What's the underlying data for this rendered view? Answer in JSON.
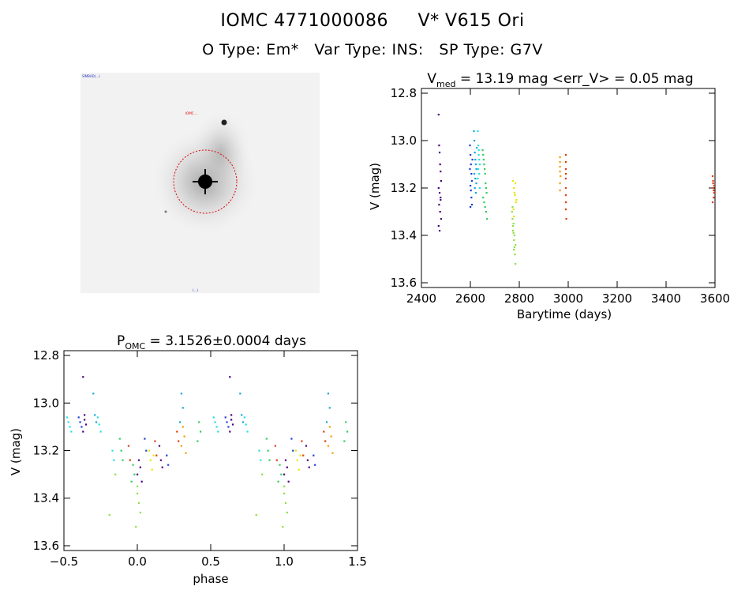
{
  "header": {
    "object_id": "IOMC 4771000086",
    "star_name": "V* V615 Ori",
    "o_type_label": "O Type:",
    "o_type": "Em*",
    "var_type_label": "Var Type:",
    "var_type": "INS:",
    "sp_type_label": "SP Type:",
    "sp_type": "G7V"
  },
  "image_panel": {
    "top_left_text": "SIMBAD(...)",
    "label_text": "IOMC ...",
    "bottom_text": "(...)",
    "colors": {
      "circle": "#e00000",
      "background": "#f2f2f2",
      "star": "#000000"
    }
  },
  "chart_data": [
    {
      "type": "scatter",
      "title": "V_med = 13.19 mag <err_V> = 0.05 mag",
      "title_parts": {
        "v": "V",
        "sub": "med",
        "rest": " = 13.19 mag <err_V> = 0.05 mag"
      },
      "xlabel": "Barytime (days)",
      "ylabel": "V (mag)",
      "xlim": [
        2400,
        3600
      ],
      "ylim": [
        13.62,
        12.78
      ],
      "xticks": [
        2400,
        2600,
        2800,
        3000,
        3200,
        3400,
        3600
      ],
      "yticks": [
        12.8,
        13.0,
        13.2,
        13.4,
        13.6
      ],
      "ytick_labels": [
        "12.8",
        "13.0",
        "13.2",
        "13.4",
        "13.6"
      ],
      "series": [
        {
          "color": "#4b0082",
          "x": [
            2470,
            2472,
            2474,
            2476,
            2478,
            2480,
            2470,
            2474,
            2478,
            2472,
            2476,
            2480,
            2470,
            2478,
            2474
          ],
          "y": [
            12.89,
            13.02,
            13.05,
            13.1,
            13.13,
            13.17,
            13.2,
            13.22,
            13.25,
            13.27,
            13.3,
            13.33,
            13.36,
            13.24,
            13.38
          ]
        },
        {
          "color": "#1c3fd8",
          "x": [
            2598,
            2600,
            2602,
            2604,
            2606,
            2600,
            2602,
            2604,
            2598,
            2606,
            2608,
            2600
          ],
          "y": [
            13.02,
            13.06,
            13.1,
            13.14,
            13.17,
            13.19,
            13.21,
            13.24,
            13.12,
            13.27,
            13.08,
            13.28
          ]
        },
        {
          "color": "#12a8d8",
          "x": [
            2614,
            2616,
            2618,
            2620,
            2622,
            2624,
            2616,
            2620,
            2624,
            2618,
            2622,
            2626
          ],
          "y": [
            12.96,
            13.0,
            13.05,
            13.08,
            13.1,
            13.12,
            13.14,
            13.16,
            13.18,
            13.2,
            13.22,
            13.03
          ]
        },
        {
          "color": "#22e0e0",
          "x": [
            2630,
            2632,
            2634,
            2636,
            2638,
            2632,
            2636,
            2630,
            2634,
            2638
          ],
          "y": [
            12.96,
            13.02,
            13.06,
            13.08,
            13.1,
            13.12,
            13.14,
            13.16,
            13.04,
            13.2
          ]
        },
        {
          "color": "#2fcf5a",
          "x": [
            2650,
            2652,
            2654,
            2656,
            2658,
            2660,
            2662,
            2664,
            2666,
            2652,
            2656,
            2660,
            2664,
            2668
          ],
          "y": [
            13.04,
            13.06,
            13.08,
            13.1,
            13.12,
            13.14,
            13.18,
            13.2,
            13.22,
            13.24,
            13.26,
            13.28,
            13.3,
            13.33
          ]
        },
        {
          "color": "#8ee040",
          "x": [
            2770,
            2772,
            2774,
            2776,
            2778,
            2780,
            2782,
            2784,
            2772,
            2776,
            2780,
            2784,
            2774,
            2778
          ],
          "y": [
            13.3,
            13.33,
            13.36,
            13.39,
            13.42,
            13.45,
            13.48,
            13.52,
            13.28,
            13.35,
            13.4,
            13.44,
            13.38,
            13.46
          ]
        },
        {
          "color": "#e6e600",
          "x": [
            2774,
            2778,
            2782,
            2786,
            2776,
            2780,
            2784,
            2788,
            2778
          ],
          "y": [
            13.17,
            13.2,
            13.23,
            13.26,
            13.29,
            13.22,
            13.18,
            13.25,
            13.32
          ]
        },
        {
          "color": "#f0a000",
          "x": [
            2966,
            2966,
            2966,
            2966,
            2968,
            2966,
            2966
          ],
          "y": [
            13.07,
            13.09,
            13.11,
            13.13,
            13.15,
            13.18,
            13.21
          ]
        },
        {
          "color": "#e23a10",
          "x": [
            2990,
            2990,
            2990,
            2990,
            2990,
            2990,
            2990,
            2990,
            2992,
            2990,
            3590,
            3592,
            3594,
            3596,
            3594,
            3592,
            3596,
            3590,
            3594
          ],
          "y": [
            13.06,
            13.09,
            13.12,
            13.16,
            13.2,
            13.23,
            13.26,
            13.29,
            13.33,
            13.14,
            13.15,
            13.18,
            13.2,
            13.22,
            13.24,
            13.17,
            13.19,
            13.26,
            13.21
          ]
        }
      ]
    },
    {
      "type": "scatter",
      "title": "P_OMC = 3.1526±0.0004 days",
      "title_parts": {
        "p": "P",
        "sub": "OMC",
        "rest": " = 3.1526±0.0004 days"
      },
      "xlabel": "phase",
      "ylabel": "V (mag)",
      "xlim": [
        -0.5,
        1.5
      ],
      "ylim": [
        13.62,
        12.78
      ],
      "xticks": [
        -0.5,
        0.0,
        0.5,
        1.0,
        1.5
      ],
      "xtick_labels": [
        "−0.5",
        "0.0",
        "0.5",
        "1.0",
        "1.5"
      ],
      "yticks": [
        12.8,
        13.0,
        13.2,
        13.4,
        13.6
      ],
      "ytick_labels": [
        "12.8",
        "13.0",
        "13.2",
        "13.4",
        "13.6"
      ],
      "series": [
        {
          "color": "#4b0082",
          "x": [
            -0.37,
            -0.36,
            -0.35,
            -0.37,
            -0.36,
            0.01,
            0.02,
            0.0,
            0.03,
            0.15,
            0.16,
            0.17,
            0.63,
            0.64,
            0.65,
            0.63,
            0.64,
            1.01,
            1.02,
            1.0,
            1.03,
            1.15,
            1.16,
            1.17
          ],
          "y": [
            12.89,
            13.05,
            13.09,
            13.12,
            13.07,
            13.24,
            13.27,
            13.3,
            13.33,
            13.18,
            13.24,
            13.27,
            12.89,
            13.05,
            13.09,
            13.12,
            13.07,
            13.24,
            13.27,
            13.3,
            13.33,
            13.18,
            13.24,
            13.27
          ]
        },
        {
          "color": "#1c3fd8",
          "x": [
            -0.4,
            -0.39,
            -0.38,
            0.05,
            0.06,
            0.2,
            0.21,
            0.6,
            0.61,
            0.62,
            1.05,
            1.06,
            1.2,
            1.21
          ],
          "y": [
            13.06,
            13.08,
            13.1,
            13.15,
            13.2,
            13.22,
            13.26,
            13.06,
            13.08,
            13.1,
            13.15,
            13.2,
            13.22,
            13.26
          ]
        },
        {
          "color": "#12a8d8",
          "x": [
            -0.3,
            -0.29,
            -0.28,
            0.3,
            0.31,
            0.29,
            0.7,
            0.71,
            0.72,
            1.3,
            1.31,
            1.29
          ],
          "y": [
            12.96,
            13.05,
            13.08,
            12.96,
            13.02,
            13.08,
            12.96,
            13.05,
            13.08,
            12.96,
            13.02,
            13.08
          ]
        },
        {
          "color": "#22e0e0",
          "x": [
            -0.48,
            -0.47,
            -0.46,
            -0.45,
            -0.27,
            -0.26,
            -0.25,
            -0.17,
            -0.16,
            0.52,
            0.53,
            0.54,
            0.55,
            0.73,
            0.74,
            0.75,
            0.83,
            0.84
          ],
          "y": [
            13.06,
            13.08,
            13.1,
            13.12,
            13.06,
            13.09,
            13.12,
            13.2,
            13.24,
            13.06,
            13.08,
            13.1,
            13.12,
            13.06,
            13.09,
            13.12,
            13.2,
            13.24
          ]
        },
        {
          "color": "#2fcf5a",
          "x": [
            -0.12,
            -0.11,
            -0.1,
            -0.03,
            -0.02,
            -0.04,
            0.42,
            0.43,
            0.41,
            0.88,
            0.89,
            0.9,
            0.97,
            0.98,
            0.96,
            1.42,
            1.43,
            1.41
          ],
          "y": [
            13.15,
            13.2,
            13.24,
            13.26,
            13.3,
            13.33,
            13.08,
            13.12,
            13.16,
            13.15,
            13.2,
            13.24,
            13.26,
            13.3,
            13.33,
            13.08,
            13.12,
            13.16
          ]
        },
        {
          "color": "#8ee040",
          "x": [
            -0.19,
            -0.15,
            0.0,
            0.01,
            0.02,
            -0.01,
            0.0,
            0.81,
            0.85,
            1.0,
            1.01,
            1.02,
            0.99,
            1.0
          ],
          "y": [
            13.47,
            13.3,
            13.38,
            13.42,
            13.46,
            13.52,
            13.35,
            13.47,
            13.3,
            13.38,
            13.42,
            13.46,
            13.52,
            13.35
          ]
        },
        {
          "color": "#e6e600",
          "x": [
            0.08,
            0.09,
            0.1,
            0.11,
            1.08,
            1.09,
            1.1,
            1.11
          ],
          "y": [
            13.2,
            13.24,
            13.28,
            13.22,
            13.2,
            13.24,
            13.28,
            13.22
          ]
        },
        {
          "color": "#f0a000",
          "x": [
            0.31,
            0.32,
            0.3,
            0.33,
            1.31,
            1.32,
            1.3,
            1.33
          ],
          "y": [
            13.1,
            13.14,
            13.18,
            13.21,
            13.1,
            13.14,
            13.18,
            13.21
          ]
        },
        {
          "color": "#e23a10",
          "x": [
            -0.06,
            -0.05,
            0.12,
            0.13,
            0.27,
            0.28,
            0.94,
            0.95,
            1.12,
            1.13,
            1.27,
            1.28
          ],
          "y": [
            13.18,
            13.24,
            13.16,
            13.22,
            13.12,
            13.16,
            13.18,
            13.24,
            13.16,
            13.22,
            13.12,
            13.16
          ]
        }
      ]
    }
  ]
}
